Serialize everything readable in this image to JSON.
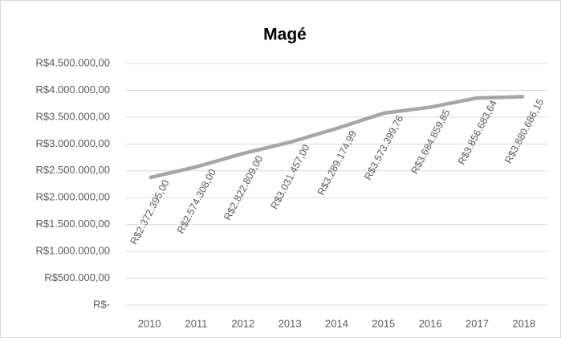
{
  "chart_data": {
    "type": "line",
    "title": "Magé",
    "categories": [
      "2010",
      "2011",
      "2012",
      "2013",
      "2014",
      "2015",
      "2016",
      "2017",
      "2018"
    ],
    "series": [
      {
        "name": "Magé",
        "color": "#a6a6a6",
        "values": [
          2372395.0,
          2574308.0,
          2822809.0,
          3031457.0,
          3289174.99,
          3573399.76,
          3684859.85,
          3856683.64,
          3880686.15
        ],
        "value_labels": [
          "R$2.372.395,00",
          "R$2.574.308,00",
          "R$2.822.809,00",
          "R$3.031.457,00",
          "R$3.289.174,99",
          "R$3.573.399,76",
          "R$3.684.859,85",
          "R$3.856.683,64",
          "R$3.880.686,15"
        ]
      }
    ],
    "ylim": [
      0,
      4500000
    ],
    "yticks": [
      {
        "value": 0,
        "label": "R$-"
      },
      {
        "value": 500000,
        "label": "R$500.000,00"
      },
      {
        "value": 1000000,
        "label": "R$1.000.000,00"
      },
      {
        "value": 1500000,
        "label": "R$1.500.000,00"
      },
      {
        "value": 2000000,
        "label": "R$2.000.000,00"
      },
      {
        "value": 2500000,
        "label": "R$2.500.000,00"
      },
      {
        "value": 3000000,
        "label": "R$3.000.000,00"
      },
      {
        "value": 3500000,
        "label": "R$3.500.000,00"
      },
      {
        "value": 4000000,
        "label": "R$4.000.000,00"
      },
      {
        "value": 4500000,
        "label": "R$4.500.000,00"
      }
    ],
    "grid": true
  }
}
